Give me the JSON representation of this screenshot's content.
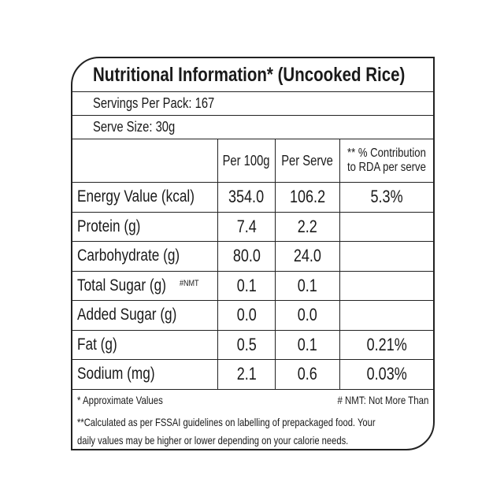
{
  "header": {
    "title": "Nutritional Information* (Uncooked Rice)",
    "servings": "Servings Per Pack: 167",
    "serve_size": "Serve Size: 30g"
  },
  "table": {
    "columns": [
      "Per 100g",
      "Per Serve",
      [
        "** % Contribution",
        "to RDA per serve"
      ]
    ],
    "rows": [
      {
        "label": "Energy Value (kcal)",
        "per_100g": "354.0",
        "per_serve": "106.2",
        "rda": "5.3%"
      },
      {
        "label": "Protein (g)",
        "per_100g": "7.4",
        "per_serve": "2.2"
      },
      {
        "label": "Carbohydrate (g)",
        "per_100g": "80.0",
        "per_serve": "24.0"
      },
      {
        "label": "Total Sugar (g)",
        "note": "#NMT",
        "per_100g": "0.1",
        "per_serve": "0.1"
      },
      {
        "label": "Added Sugar (g)",
        "per_100g": "0.0",
        "per_serve": "0.0"
      },
      {
        "label": "Fat (g)",
        "per_100g": "0.5",
        "per_serve": "0.1",
        "rda": "0.21%"
      },
      {
        "label": "Sodium (mg)",
        "per_100g": "2.1",
        "per_serve": "0.6",
        "rda": "0.03%"
      }
    ]
  },
  "footer": {
    "approx": "* Approximate Values",
    "nmt": "# NMT: Not More Than",
    "rda_note": [
      "**Calculated as per FSSAI guidelines on labelling of prepackaged food. Your",
      "daily values may be higher or lower depending on your calorie needs."
    ]
  }
}
